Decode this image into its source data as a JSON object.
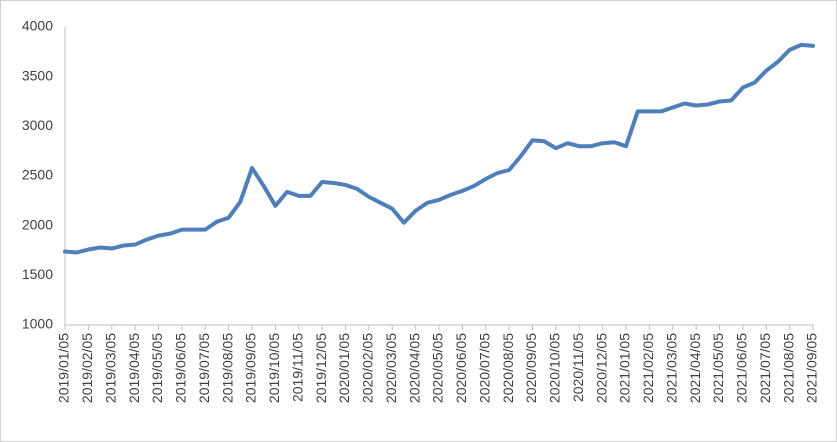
{
  "chart_data": {
    "type": "line",
    "categories": [
      "2019/01/05",
      null,
      "2019/02/05",
      null,
      "2019/03/05",
      null,
      "2019/04/05",
      null,
      "2019/05/05",
      null,
      "2019/06/05",
      null,
      "2019/07/05",
      null,
      "2019/08/05",
      null,
      "2019/09/05",
      null,
      "2019/10/05",
      null,
      "2019/11/05",
      null,
      "2019/12/05",
      null,
      "2020/01/05",
      null,
      "2020/02/05",
      null,
      "2020/03/05",
      null,
      "2020/04/05",
      null,
      "2020/05/05",
      null,
      "2020/06/05",
      null,
      "2020/07/05",
      null,
      "2020/08/05",
      null,
      "2020/09/05",
      null,
      "2020/10/05",
      null,
      "2020/11/05",
      null,
      "2020/12/05",
      null,
      "2021/01/05",
      null,
      "2021/02/05",
      null,
      "2021/03/05",
      null,
      "2021/04/05",
      null,
      "2021/05/05",
      null,
      "2021/06/05",
      null,
      "2021/07/05",
      null,
      "2021/08/05",
      null,
      "2021/09/05"
    ],
    "values": [
      1740,
      1730,
      1760,
      1780,
      1770,
      1800,
      1810,
      1860,
      1900,
      1920,
      1960,
      1960,
      1960,
      2040,
      2080,
      2240,
      2580,
      2400,
      2200,
      2340,
      2300,
      2300,
      2440,
      2430,
      2410,
      2370,
      2290,
      2230,
      2170,
      2030,
      2150,
      2230,
      2260,
      2310,
      2350,
      2400,
      2470,
      2530,
      2560,
      2700,
      2860,
      2850,
      2780,
      2830,
      2800,
      2800,
      2830,
      2840,
      2800,
      3150,
      3150,
      3150,
      3190,
      3230,
      3210,
      3220,
      3250,
      3260,
      3390,
      3440,
      3560,
      3650,
      3770,
      3820,
      3810
    ],
    "color": "#4f7fba",
    "ylim": [
      1000,
      4000
    ],
    "yticks": [
      1000,
      1500,
      2000,
      2500,
      3000,
      3500,
      4000
    ],
    "grid": false
  }
}
